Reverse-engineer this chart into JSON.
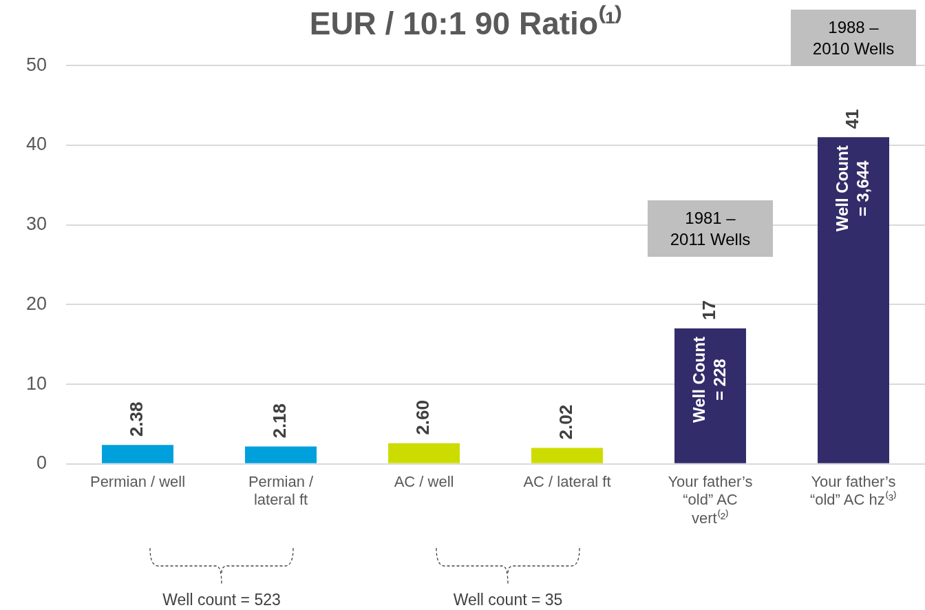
{
  "chart_data": {
    "type": "bar",
    "title": "EUR / 10:1 90 Ratio⁽¹⁾",
    "categories": [
      "Permian / well",
      "Permian / lateral ft",
      "AC / well",
      "AC / lateral ft",
      "Your father’s “old” AC vert⁽²⁾",
      "Your father’s “old” AC hz⁽³⁾"
    ],
    "values": [
      2.38,
      2.18,
      2.6,
      2.02,
      17,
      41
    ],
    "value_labels": [
      "2.38",
      "2.18",
      "2.60",
      "2.02",
      "17",
      "41"
    ],
    "colors": [
      "#00a0dc",
      "#00a0dc",
      "#cddc00",
      "#cddc00",
      "#332c6a",
      "#332c6a"
    ],
    "ylim": [
      0,
      50
    ],
    "yticks": [
      0,
      10,
      20,
      30,
      40,
      50
    ],
    "grid": "y",
    "legend": false,
    "annotations": [
      "Well Count = 228",
      "Well Count = 3,644",
      "1981 – 2011 Wells",
      "1988 – 2010 Wells",
      "Well count = 523",
      "Well count = 35"
    ]
  }
}
